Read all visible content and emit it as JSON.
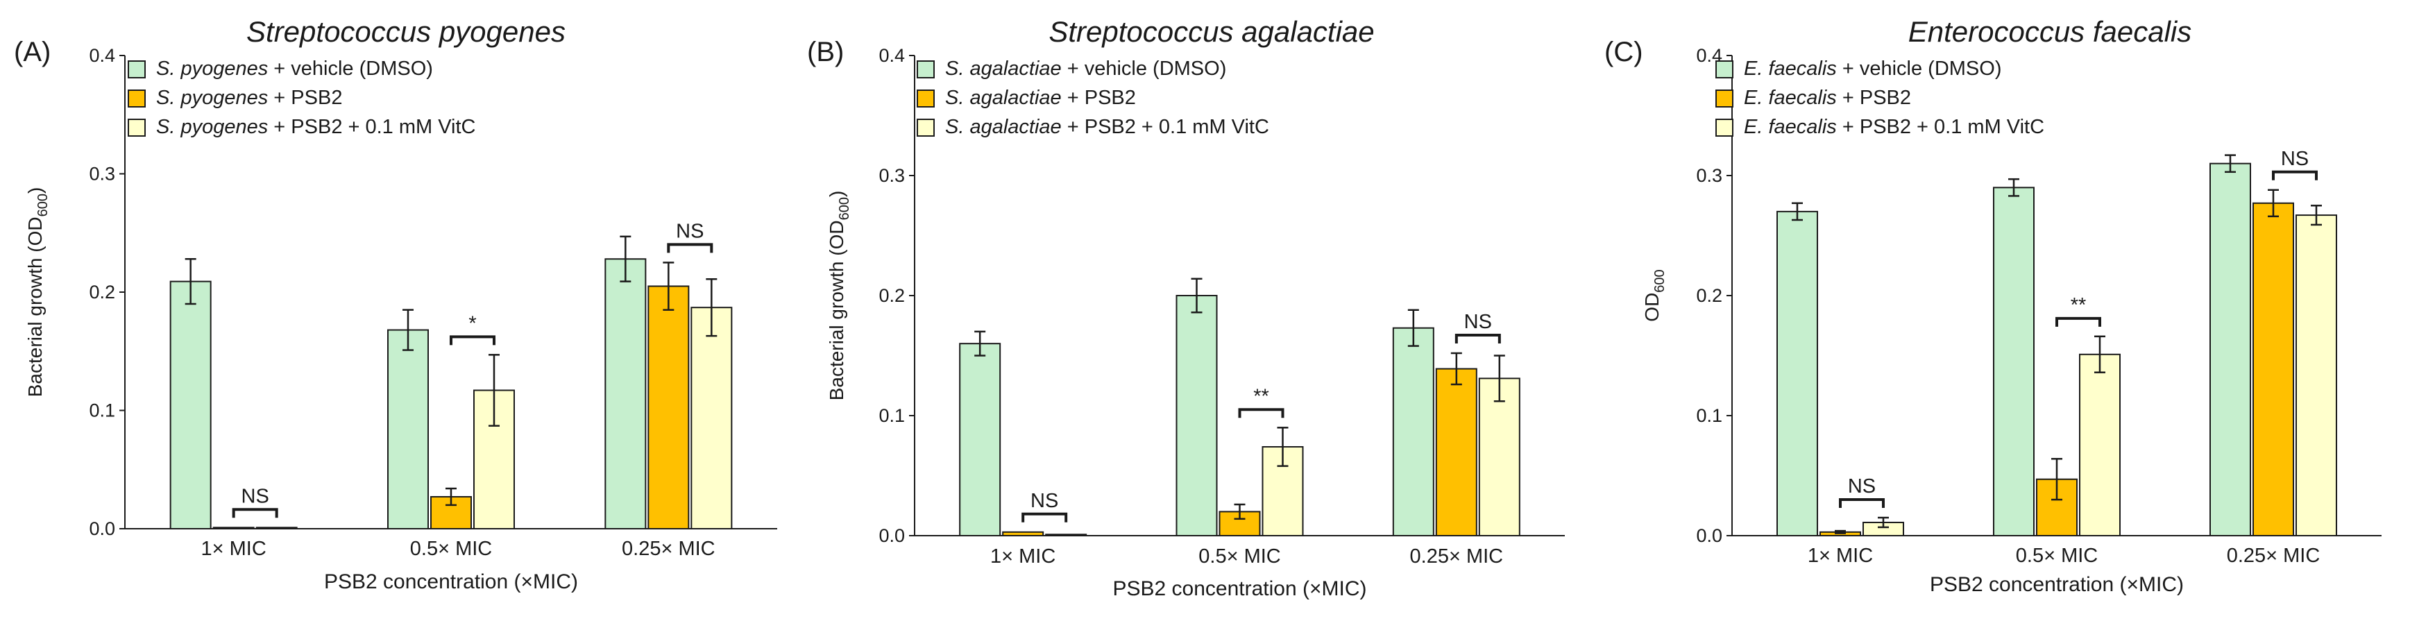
{
  "colors": {
    "vehicle": "#c6efce",
    "psb2": "#ffc000",
    "vitc": "#ffffcc",
    "edge": "#1a1a1a"
  },
  "chart_data": [
    {
      "type": "bar",
      "panel": "(A)",
      "title": "Streptococcus pyogenes",
      "ylabel_main": "Bacterial growth (OD",
      "ylabel_sub": "600",
      "ylabel_end": ")",
      "xlabel": "PSB2 concentration (×MIC)",
      "categories": [
        "1× MIC",
        "0.5× MIC",
        "0.25× MIC"
      ],
      "ylim": [
        0,
        0.4
      ],
      "yticks": [
        "0.0",
        "0.1",
        "0.2",
        "0.3",
        "0.4"
      ],
      "series": [
        {
          "name": "S. pyogenes + vehicle (DMSO)",
          "species": "S. pyogenes",
          "treatment": "+ vehicle (DMSO)",
          "values": [
            0.209,
            0.168,
            0.228
          ],
          "errors": [
            0.019,
            0.017,
            0.019
          ]
        },
        {
          "name": "S. pyogenes + PSB2",
          "species": "S. pyogenes",
          "treatment": "+ PSB2",
          "values": [
            0.001,
            0.027,
            0.205
          ],
          "errors": [
            0.0,
            0.007,
            0.02
          ]
        },
        {
          "name": "S. pyogenes + PSB2 + 0.1 mM VitC",
          "species": "S. pyogenes",
          "treatment": "+ PSB2 + 0.1 mM VitC",
          "values": [
            0.001,
            0.117,
            0.187
          ],
          "errors": [
            0.0,
            0.03,
            0.024
          ]
        }
      ],
      "significance": [
        "NS",
        "*",
        "NS"
      ]
    },
    {
      "type": "bar",
      "panel": "(B)",
      "title": "Streptococcus agalactiae",
      "ylabel_main": "Bacterial growth (OD",
      "ylabel_sub": "600",
      "ylabel_end": ")",
      "xlabel": "PSB2 concentration (×MIC)",
      "categories": [
        "1× MIC",
        "0.5× MIC",
        "0.25× MIC"
      ],
      "ylim": [
        0,
        0.4
      ],
      "yticks": [
        "0.0",
        "0.1",
        "0.2",
        "0.3",
        "0.4"
      ],
      "series": [
        {
          "name": "S. agalactiae + vehicle (DMSO)",
          "species": "S. agalactiae",
          "treatment": "+ vehicle (DMSO)",
          "values": [
            0.16,
            0.2,
            0.173
          ],
          "errors": [
            0.01,
            0.014,
            0.015
          ]
        },
        {
          "name": "S. agalactiae + PSB2",
          "species": "S. agalactiae",
          "treatment": "+ PSB2",
          "values": [
            0.003,
            0.02,
            0.139
          ],
          "errors": [
            0.0,
            0.006,
            0.013
          ]
        },
        {
          "name": "S. agalactiae + PSB2 + 0.1 mM VitC",
          "species": "S. agalactiae",
          "treatment": "+ PSB2 + 0.1 mM VitC",
          "values": [
            0.001,
            0.074,
            0.131
          ],
          "errors": [
            0.0,
            0.016,
            0.019
          ]
        }
      ],
      "significance": [
        "NS",
        "**",
        "NS"
      ]
    },
    {
      "type": "bar",
      "panel": "(C)",
      "title": "Enterococcus faecalis",
      "ylabel_main": "OD",
      "ylabel_sub": "600",
      "ylabel_end": "",
      "xlabel": "PSB2 concentration (×MIC)",
      "categories": [
        "1× MIC",
        "0.5× MIC",
        "0.25× MIC"
      ],
      "ylim": [
        0,
        0.4
      ],
      "yticks": [
        "0.0",
        "0.1",
        "0.2",
        "0.3",
        "0.4"
      ],
      "series": [
        {
          "name": "E. faecalis + vehicle (DMSO)",
          "species": "E. faecalis",
          "treatment": "+ vehicle (DMSO)",
          "values": [
            0.27,
            0.29,
            0.31
          ],
          "errors": [
            0.007,
            0.007,
            0.007
          ]
        },
        {
          "name": "E. faecalis + PSB2",
          "species": "E. faecalis",
          "treatment": "+ PSB2",
          "values": [
            0.003,
            0.047,
            0.277
          ],
          "errors": [
            0.001,
            0.017,
            0.011
          ]
        },
        {
          "name": "E. faecalis + PSB2 + 0.1 mM VitC",
          "species": "E. faecalis",
          "treatment": "+ PSB2 + 0.1 mM VitC",
          "values": [
            0.011,
            0.151,
            0.267
          ],
          "errors": [
            0.004,
            0.015,
            0.008
          ]
        }
      ],
      "significance": [
        "NS",
        "**",
        "NS"
      ]
    }
  ]
}
